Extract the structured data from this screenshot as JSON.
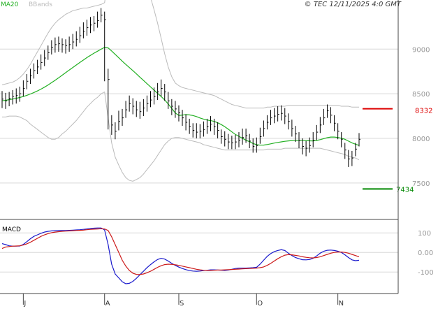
{
  "header": {
    "legend_ma20": "MA20",
    "legend_bbands": "BBands",
    "copyright": "© TEC 12/11/2025 4:0 GMT",
    "macd_label": "MACD"
  },
  "colors": {
    "price_bars": "#000000",
    "ma20": "#22b022",
    "bbands": "#bbbbbb",
    "macd_line": "#1a1acc",
    "signal_line": "#cc1a1a",
    "resistance": "#dd0000",
    "support": "#008800",
    "grid": "#d8d8d8",
    "axis_text": "#999999"
  },
  "chart_data": [
    {
      "type": "ohlc",
      "title": "",
      "x_tick_labels": [
        "J",
        "A",
        "S",
        "O",
        "N"
      ],
      "x": [
        "2025-06-23",
        "2025-06-24",
        "2025-06-25",
        "2025-06-26",
        "2025-06-27",
        "2025-06-30",
        "2025-07-01",
        "2025-07-02",
        "2025-07-03",
        "2025-07-04",
        "2025-07-07",
        "2025-07-08",
        "2025-07-09",
        "2025-07-10",
        "2025-07-11",
        "2025-07-14",
        "2025-07-15",
        "2025-07-16",
        "2025-07-17",
        "2025-07-18",
        "2025-07-21",
        "2025-07-22",
        "2025-07-23",
        "2025-07-24",
        "2025-07-25",
        "2025-07-28",
        "2025-07-29",
        "2025-07-30",
        "2025-07-31",
        "2025-08-01",
        "2025-08-04",
        "2025-08-05",
        "2025-08-06",
        "2025-08-07",
        "2025-08-08",
        "2025-08-11",
        "2025-08-12",
        "2025-08-13",
        "2025-08-14",
        "2025-08-15",
        "2025-08-18",
        "2025-08-19",
        "2025-08-20",
        "2025-08-21",
        "2025-08-22",
        "2025-08-25",
        "2025-08-26",
        "2025-08-27",
        "2025-08-28",
        "2025-08-29",
        "2025-09-01",
        "2025-09-02",
        "2025-09-03",
        "2025-09-04",
        "2025-09-05",
        "2025-09-08",
        "2025-09-09",
        "2025-09-10",
        "2025-09-11",
        "2025-09-12",
        "2025-09-15",
        "2025-09-16",
        "2025-09-17",
        "2025-09-18",
        "2025-09-19",
        "2025-09-22",
        "2025-09-23",
        "2025-09-24",
        "2025-09-25",
        "2025-09-26",
        "2025-09-29",
        "2025-09-30",
        "2025-10-01",
        "2025-10-02",
        "2025-10-03",
        "2025-10-06",
        "2025-10-07",
        "2025-10-08",
        "2025-10-09",
        "2025-10-10",
        "2025-10-13",
        "2025-10-14",
        "2025-10-15",
        "2025-10-16",
        "2025-10-17",
        "2025-10-20",
        "2025-10-21",
        "2025-10-22",
        "2025-10-23",
        "2025-10-24",
        "2025-10-27",
        "2025-10-28",
        "2025-10-29",
        "2025-10-30",
        "2025-10-31",
        "2025-11-03",
        "2025-11-04",
        "2025-11-05",
        "2025-11-06",
        "2025-11-07",
        "2025-11-10",
        "2025-11-11"
      ],
      "close": [
        8440,
        8420,
        8450,
        8470,
        8480,
        8500,
        8560,
        8640,
        8700,
        8760,
        8800,
        8850,
        8900,
        8960,
        9020,
        9050,
        9060,
        9050,
        9040,
        9050,
        9080,
        9110,
        9150,
        9200,
        9240,
        9270,
        9290,
        9320,
        9380,
        9330,
        8660,
        8150,
        8080,
        8190,
        8230,
        8320,
        8390,
        8360,
        8320,
        8300,
        8340,
        8390,
        8430,
        8470,
        8520,
        8560,
        8520,
        8420,
        8360,
        8330,
        8290,
        8230,
        8180,
        8130,
        8090,
        8070,
        8080,
        8100,
        8130,
        8160,
        8130,
        8090,
        8020,
        7990,
        7960,
        7950,
        7960,
        7980,
        8010,
        8030,
        7970,
        7910,
        7920,
        8020,
        8110,
        8180,
        8230,
        8250,
        8270,
        8280,
        8250,
        8190,
        8110,
        8050,
        7980,
        7910,
        7890,
        7920,
        7980,
        8070,
        8150,
        8230,
        8310,
        8260,
        8170,
        8080,
        7990,
        7870,
        7770,
        7780,
        7880,
        7990
      ],
      "high": [
        8530,
        8510,
        8520,
        8540,
        8560,
        8580,
        8650,
        8720,
        8780,
        8840,
        8880,
        8940,
        8990,
        9040,
        9100,
        9130,
        9140,
        9120,
        9110,
        9140,
        9170,
        9200,
        9250,
        9300,
        9330,
        9360,
        9370,
        9420,
        9460,
        9420,
        8780,
        8260,
        8180,
        8310,
        8330,
        8420,
        8480,
        8450,
        8420,
        8410,
        8440,
        8480,
        8530,
        8570,
        8620,
        8660,
        8610,
        8520,
        8440,
        8420,
        8370,
        8320,
        8270,
        8220,
        8170,
        8170,
        8160,
        8190,
        8220,
        8250,
        8220,
        8180,
        8100,
        8080,
        8050,
        8030,
        8040,
        8070,
        8110,
        8110,
        8050,
        8000,
        8010,
        8120,
        8200,
        8260,
        8320,
        8340,
        8360,
        8370,
        8340,
        8280,
        8210,
        8140,
        8070,
        8000,
        7970,
        8010,
        8070,
        8150,
        8240,
        8330,
        8380,
        8350,
        8260,
        8170,
        8070,
        7950,
        7870,
        7860,
        7950,
        8060
      ],
      "low": [
        8340,
        8330,
        8360,
        8380,
        8390,
        8410,
        8470,
        8550,
        8610,
        8670,
        8720,
        8770,
        8810,
        8880,
        8940,
        8960,
        8970,
        8960,
        8950,
        8970,
        9000,
        9030,
        9070,
        9120,
        9150,
        9180,
        9200,
        9240,
        9300,
        8640,
        8100,
        8040,
        7990,
        8090,
        8140,
        8230,
        8300,
        8270,
        8240,
        8220,
        8250,
        8300,
        8350,
        8380,
        8430,
        8470,
        8420,
        8330,
        8260,
        8230,
        8190,
        8140,
        8090,
        8050,
        8010,
        8000,
        8000,
        8020,
        8050,
        8080,
        8040,
        8000,
        7940,
        7910,
        7880,
        7880,
        7880,
        7900,
        7930,
        7950,
        7890,
        7840,
        7840,
        7940,
        8020,
        8100,
        8150,
        8170,
        8190,
        8200,
        8160,
        8100,
        8020,
        7960,
        7890,
        7820,
        7800,
        7840,
        7900,
        7980,
        8060,
        8150,
        8230,
        8170,
        8080,
        7990,
        7900,
        7770,
        7680,
        7690,
        7800,
        7910
      ],
      "ma20": [
        8421,
        8427,
        8434,
        8441,
        8449,
        8458,
        8469,
        8482,
        8497,
        8514,
        8532,
        8552,
        8574,
        8598,
        8624,
        8651,
        8679,
        8708,
        8737,
        8766,
        8794,
        8822,
        8850,
        8878,
        8905,
        8930,
        8954,
        8976,
        8999,
        9019,
        9013,
        8979,
        8941,
        8903,
        8864,
        8828,
        8794,
        8759,
        8723,
        8686,
        8649,
        8613,
        8577,
        8540,
        8504,
        8469,
        8431,
        8386,
        8335,
        8285,
        8257,
        8261,
        8266,
        8263,
        8256,
        8244,
        8229,
        8216,
        8206,
        8199,
        8190,
        8175,
        8155,
        8131,
        8103,
        8073,
        8045,
        8023,
        8002,
        7979,
        7963,
        7943,
        7930,
        7924,
        7925,
        7931,
        7939,
        7948,
        7955,
        7961,
        7967,
        7972,
        7976,
        7979,
        7980,
        7979,
        7976,
        7973,
        7972,
        7977,
        7986,
        7997,
        8008,
        8015,
        8015,
        8010,
        8002,
        7990,
        7970,
        7950,
        7935,
        7921
      ],
      "bb_upper": [
        8600,
        8610,
        8620,
        8630,
        8650,
        8680,
        8720,
        8770,
        8830,
        8900,
        8970,
        9040,
        9110,
        9180,
        9240,
        9290,
        9330,
        9360,
        9390,
        9410,
        9430,
        9440,
        9450,
        9460,
        9460,
        9470,
        9480,
        9490,
        9500,
        9520,
        9800,
        10000,
        10100,
        10140,
        10150,
        10130,
        10100,
        10050,
        9990,
        9910,
        9810,
        9700,
        9580,
        9440,
        9290,
        9120,
        8950,
        8800,
        8690,
        8620,
        8590,
        8570,
        8560,
        8550,
        8540,
        8530,
        8520,
        8510,
        8500,
        8490,
        8480,
        8460,
        8440,
        8420,
        8400,
        8380,
        8370,
        8360,
        8350,
        8340,
        8340,
        8340,
        8340,
        8340,
        8340,
        8350,
        8350,
        8360,
        8360,
        8360,
        8360,
        8370,
        8370,
        8370,
        8370,
        8370,
        8370,
        8370,
        8370,
        8370,
        8370,
        8370,
        8370,
        8370,
        8370,
        8370,
        8360,
        8360,
        8360,
        8350,
        8350,
        8350
      ],
      "bb_lower": [
        8240,
        8240,
        8250,
        8250,
        8250,
        8240,
        8220,
        8200,
        8160,
        8130,
        8100,
        8070,
        8040,
        8010,
        7990,
        7990,
        8010,
        8050,
        8080,
        8120,
        8160,
        8200,
        8250,
        8300,
        8350,
        8390,
        8430,
        8460,
        8500,
        8520,
        8230,
        7950,
        7790,
        7700,
        7620,
        7560,
        7530,
        7520,
        7540,
        7560,
        7600,
        7650,
        7700,
        7750,
        7810,
        7870,
        7930,
        7970,
        8000,
        8010,
        8010,
        8000,
        7990,
        7980,
        7970,
        7960,
        7950,
        7930,
        7920,
        7910,
        7900,
        7890,
        7880,
        7870,
        7870,
        7870,
        7870,
        7870,
        7870,
        7870,
        7870,
        7870,
        7870,
        7870,
        7870,
        7880,
        7880,
        7880,
        7880,
        7880,
        7890,
        7890,
        7890,
        7890,
        7890,
        7890,
        7890,
        7890,
        7890,
        7890,
        7890,
        7880,
        7870,
        7860,
        7850,
        7840,
        7830,
        7820,
        7800,
        7790,
        7780,
        7760
      ],
      "y_tick_labels": [
        "9000",
        "8500",
        "8000",
        "7500"
      ],
      "ylim": [
        7100,
        9550
      ],
      "resistance": {
        "value": 8332,
        "label": "8332"
      },
      "support": {
        "value": 7434,
        "label": "7434"
      }
    },
    {
      "type": "line",
      "title": "MACD",
      "series": [
        {
          "role": "macd",
          "values": [
            45,
            40,
            34,
            32,
            32,
            33,
            41,
            55,
            70,
            82,
            90,
            98,
            104,
            108,
            110,
            111,
            112,
            112,
            112,
            113,
            114,
            115,
            116,
            118,
            120,
            122,
            124,
            125,
            125,
            115,
            40,
            -60,
            -110,
            -130,
            -150,
            -160,
            -158,
            -148,
            -132,
            -114,
            -96,
            -78,
            -62,
            -48,
            -36,
            -30,
            -34,
            -44,
            -56,
            -66,
            -75,
            -82,
            -88,
            -93,
            -95,
            -96,
            -95,
            -93,
            -91,
            -89,
            -89,
            -90,
            -91,
            -92,
            -90,
            -86,
            -82,
            -80,
            -80,
            -80,
            -79,
            -78,
            -76,
            -60,
            -40,
            -20,
            -6,
            4,
            10,
            14,
            10,
            -4,
            -16,
            -26,
            -32,
            -37,
            -38,
            -36,
            -30,
            -18,
            -4,
            6,
            11,
            12,
            10,
            6,
            0,
            -12,
            -26,
            -38,
            -42,
            -40
          ]
        },
        {
          "role": "signal",
          "values": [
            20,
            28,
            30,
            32,
            33,
            34,
            38,
            44,
            52,
            62,
            72,
            82,
            90,
            96,
            101,
            104,
            106,
            108,
            109,
            110,
            111,
            112,
            113,
            114,
            116,
            118,
            119,
            120,
            121,
            120,
            112,
            80,
            40,
            0,
            -40,
            -70,
            -92,
            -106,
            -112,
            -113,
            -110,
            -104,
            -96,
            -86,
            -76,
            -68,
            -62,
            -60,
            -61,
            -63,
            -66,
            -70,
            -74,
            -78,
            -82,
            -86,
            -89,
            -91,
            -92,
            -92,
            -91,
            -90,
            -90,
            -89,
            -88,
            -87,
            -86,
            -85,
            -84,
            -83,
            -82,
            -81,
            -80,
            -78,
            -74,
            -66,
            -56,
            -44,
            -32,
            -22,
            -14,
            -11,
            -12,
            -15,
            -18,
            -22,
            -25,
            -27,
            -28,
            -26,
            -22,
            -16,
            -10,
            -4,
            0,
            2,
            2,
            0,
            -4,
            -10,
            -16,
            -22
          ]
        }
      ],
      "y_tick_labels": [
        "100",
        "0.00",
        "-100"
      ],
      "ylim": [
        -210,
        165
      ]
    }
  ]
}
